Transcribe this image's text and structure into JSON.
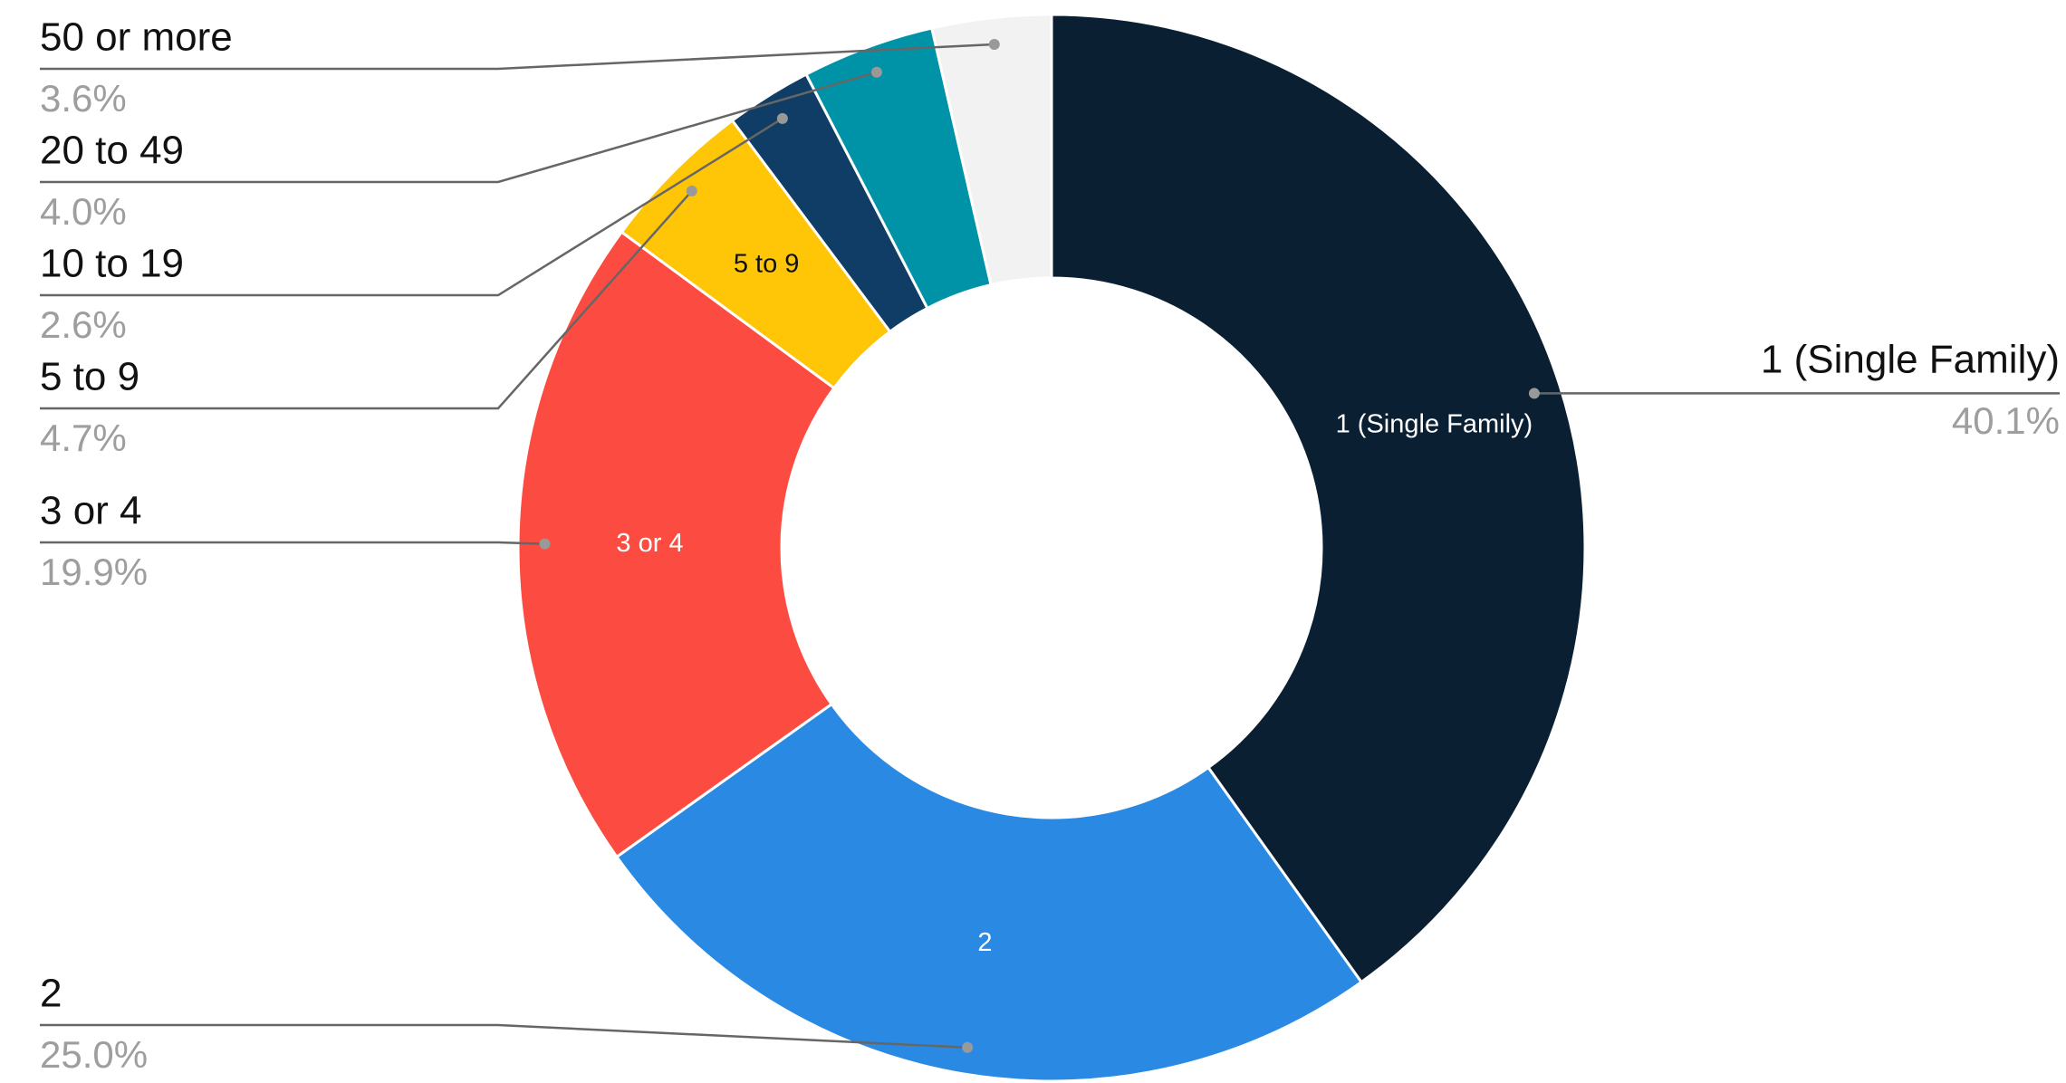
{
  "chart_data": {
    "type": "donut",
    "categories": [
      "1 (Single Family)",
      "2",
      "3 or 4",
      "5 to 9",
      "10 to 19",
      "20 to 49",
      "50 or more"
    ],
    "values": [
      40.1,
      25.0,
      19.9,
      4.7,
      2.6,
      4.0,
      3.6
    ],
    "value_labels": [
      "40.1%",
      "25.0%",
      "19.9%",
      "4.7%",
      "2.6%",
      "4.0%",
      "3.6%"
    ],
    "colors": [
      "#0b1f33",
      "#2a8ae3",
      "#fc4c41",
      "#ffc608",
      "#0f3d66",
      "#0093a8",
      "#f2f2f2"
    ]
  }
}
